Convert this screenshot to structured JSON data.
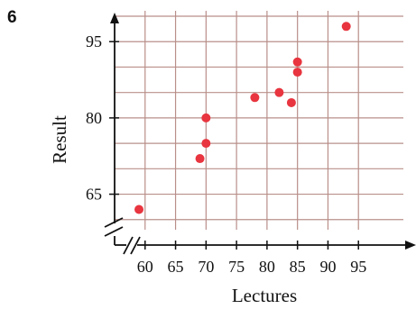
{
  "question_number": "6",
  "chart_data": {
    "type": "scatter",
    "title": "",
    "xlabel": "Lectures",
    "ylabel": "Result",
    "xlim": [
      55,
      100
    ],
    "ylim": [
      55,
      100
    ],
    "x_axis_break": true,
    "y_axis_break": true,
    "grid": true,
    "xticks": [
      60,
      65,
      70,
      75,
      80,
      85,
      90,
      95
    ],
    "yticks": [
      65,
      80,
      95
    ],
    "x_tick_labels": [
      "60",
      "65",
      "70",
      "75",
      "80",
      "85",
      "90",
      "95"
    ],
    "y_tick_labels": [
      "65",
      "80",
      "95"
    ],
    "point_color": "#e8353f",
    "points": [
      {
        "x": 59,
        "y": 62
      },
      {
        "x": 69,
        "y": 72
      },
      {
        "x": 70,
        "y": 75
      },
      {
        "x": 70,
        "y": 80
      },
      {
        "x": 78,
        "y": 84
      },
      {
        "x": 82,
        "y": 85
      },
      {
        "x": 84,
        "y": 83
      },
      {
        "x": 85,
        "y": 89
      },
      {
        "x": 85,
        "y": 91
      },
      {
        "x": 93,
        "y": 98
      }
    ]
  }
}
